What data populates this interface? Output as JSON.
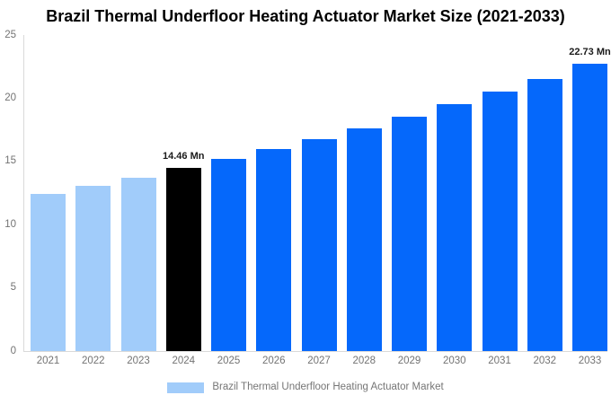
{
  "title": "Brazil Thermal Underfloor Heating Actuator Market Size (2021-2033)",
  "legend": {
    "label": "Brazil Thermal Underfloor Heating Actuator Market",
    "swatch_color": "#A1CCFA"
  },
  "colors": {
    "historical": "#A1CCFA",
    "base_year": "#000000",
    "forecast": "#0568FB",
    "axis_line": "#D9D9D9",
    "tick_text": "#737373",
    "value_label_text": "#1A1A1A"
  },
  "chart_data": {
    "type": "bar",
    "title": "Brazil Thermal Underfloor Heating Actuator Market Size (2021-2033)",
    "xlabel": "",
    "ylabel": "",
    "ylim": [
      0,
      25
    ],
    "yticks": [
      0,
      5,
      10,
      15,
      20,
      25
    ],
    "grid": false,
    "legend_position": "bottom",
    "categories": [
      "2021",
      "2022",
      "2023",
      "2024",
      "2025",
      "2026",
      "2027",
      "2028",
      "2029",
      "2030",
      "2031",
      "2032",
      "2033"
    ],
    "values": [
      12.4,
      13.05,
      13.72,
      14.46,
      15.2,
      15.97,
      16.79,
      17.65,
      18.55,
      19.5,
      20.5,
      21.55,
      22.73
    ],
    "roles": [
      "historical",
      "historical",
      "historical",
      "base_year",
      "forecast",
      "forecast",
      "forecast",
      "forecast",
      "forecast",
      "forecast",
      "forecast",
      "forecast",
      "forecast"
    ],
    "annotations": [
      {
        "category": "2024",
        "text": "14.46 Mn"
      },
      {
        "category": "2033",
        "text": "22.73 Mn"
      }
    ]
  }
}
